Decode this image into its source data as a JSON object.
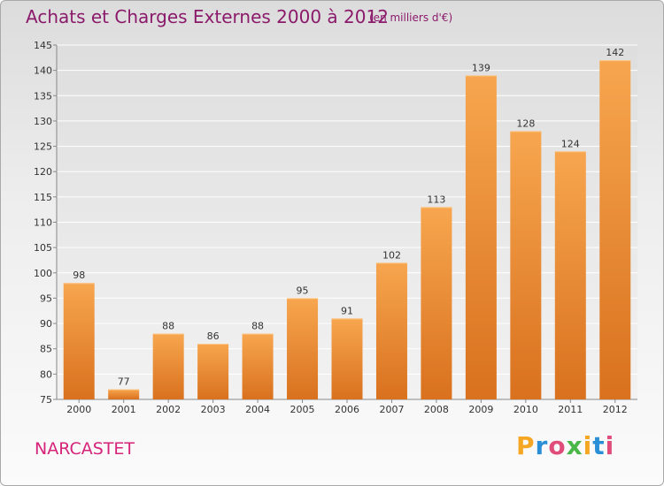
{
  "chart_data": {
    "type": "bar",
    "title": "Achats et Charges Externes 2000 à 2012",
    "subtitle": "(en milliers d'€)",
    "categories": [
      "2000",
      "2001",
      "2002",
      "2003",
      "2004",
      "2005",
      "2006",
      "2007",
      "2008",
      "2009",
      "2010",
      "2011",
      "2012"
    ],
    "values": [
      98,
      77,
      88,
      86,
      88,
      95,
      91,
      102,
      113,
      139,
      128,
      124,
      142
    ],
    "ylim": [
      75,
      145
    ],
    "yticks": [
      75,
      80,
      85,
      90,
      95,
      100,
      105,
      110,
      115,
      120,
      125,
      130,
      135,
      140,
      145
    ],
    "grid": true,
    "bar_color_top": "#f7a64f",
    "bar_color_bottom": "#d9711e"
  },
  "footer": {
    "place": "NARCASTET",
    "logo_letters": [
      "P",
      "r",
      "o",
      "x",
      "i",
      "t",
      "i"
    ],
    "logo_colors": [
      "#f5a623",
      "#2a8fd6",
      "#e04d7a",
      "#49b648",
      "#f5a623",
      "#2a8fd6",
      "#e04d7a"
    ]
  }
}
